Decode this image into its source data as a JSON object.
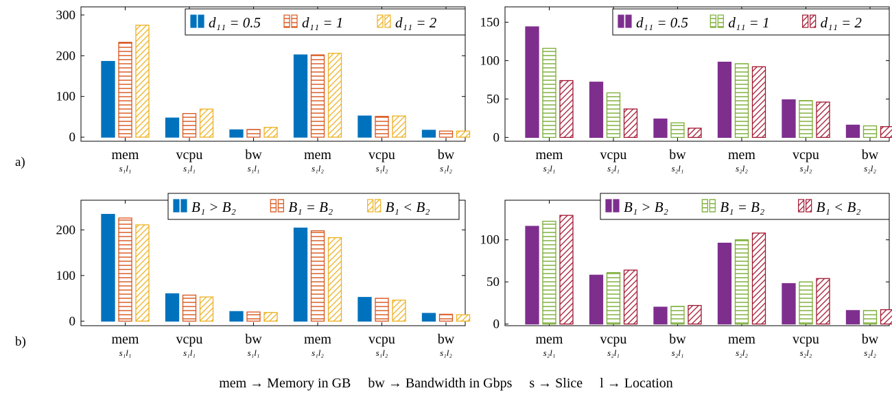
{
  "row_labels": [
    "a)",
    "b)"
  ],
  "caption": "mem → Memory in GB     bw → Bandwidth in Gbps     s → Slice     l → Location",
  "chart_data": [
    {
      "type": "bar",
      "categories": [
        {
          "main": "mem",
          "sub": "s₁l₁"
        },
        {
          "main": "vcpu",
          "sub": "s₁l₁"
        },
        {
          "main": "bw",
          "sub": "s₁l₁"
        },
        {
          "main": "mem",
          "sub": "s₁l₂"
        },
        {
          "main": "vcpu",
          "sub": "s₁l₂"
        },
        {
          "main": "bw",
          "sub": "s₁l₂"
        }
      ],
      "yticks": [
        0,
        100,
        200,
        300
      ],
      "ylim": [
        -10,
        320
      ],
      "legend_position": "top-right",
      "series": [
        {
          "name": "d₁₁ = 0.5",
          "values": [
            186,
            47,
            18,
            202,
            52,
            17
          ],
          "color": "#0072bd",
          "pattern": "solid"
        },
        {
          "name": "d₁₁ = 1",
          "values": [
            233,
            58,
            19,
            202,
            51,
            15
          ],
          "color": "#d95319",
          "pattern": "horizontal"
        },
        {
          "name": "d₁₁ = 2",
          "values": [
            275,
            69,
            24,
            206,
            52,
            15
          ],
          "color": "#edb120",
          "pattern": "diagonal"
        }
      ]
    },
    {
      "type": "bar",
      "categories": [
        {
          "main": "mem",
          "sub": "s₂l₁"
        },
        {
          "main": "vcpu",
          "sub": "s₂l₁"
        },
        {
          "main": "bw",
          "sub": "s₂l₁"
        },
        {
          "main": "mem",
          "sub": "s₂l₂"
        },
        {
          "main": "vcpu",
          "sub": "s₂l₂"
        },
        {
          "main": "bw",
          "sub": "s₂l₂"
        }
      ],
      "yticks": [
        0,
        50,
        100,
        150
      ],
      "ylim": [
        -5,
        170
      ],
      "legend_position": "top-right",
      "series": [
        {
          "name": "d₁₁ = 0.5",
          "values": [
            144,
            72,
            24,
            98,
            49,
            16
          ],
          "color": "#7e2f8e",
          "pattern": "solid"
        },
        {
          "name": "d₁₁ = 1",
          "values": [
            116,
            58,
            19,
            96,
            48,
            15
          ],
          "color": "#77ac30",
          "pattern": "horizontal"
        },
        {
          "name": "d₁₁ = 2",
          "values": [
            74,
            37,
            12,
            92,
            46,
            14
          ],
          "color": "#a2142f",
          "pattern": "diagonal"
        }
      ]
    },
    {
      "type": "bar",
      "categories": [
        {
          "main": "mem",
          "sub": "s₁l₁"
        },
        {
          "main": "vcpu",
          "sub": "s₁l₁"
        },
        {
          "main": "bw",
          "sub": "s₁l₁"
        },
        {
          "main": "mem",
          "sub": "s₁l₂"
        },
        {
          "main": "vcpu",
          "sub": "s₁l₂"
        },
        {
          "main": "bw",
          "sub": "s₁l₂"
        }
      ],
      "yticks": [
        0,
        100,
        200
      ],
      "ylim": [
        -10,
        265
      ],
      "legend_position": "top-right",
      "series": [
        {
          "name": "B₁ > B₂",
          "values": [
            234,
            60,
            21,
            204,
            52,
            17
          ],
          "color": "#0072bd",
          "pattern": "solid"
        },
        {
          "name": "B₁ = B₂",
          "values": [
            226,
            57,
            20,
            198,
            50,
            15
          ],
          "color": "#d95319",
          "pattern": "horizontal"
        },
        {
          "name": "B₁ < B₂",
          "values": [
            211,
            53,
            19,
            183,
            46,
            14
          ],
          "color": "#edb120",
          "pattern": "diagonal"
        }
      ]
    },
    {
      "type": "bar",
      "categories": [
        {
          "main": "mem",
          "sub": "s₂l₁"
        },
        {
          "main": "vcpu",
          "sub": "s₂l₁"
        },
        {
          "main": "bw",
          "sub": "s₂l₁"
        },
        {
          "main": "mem",
          "sub": "s₂l₂"
        },
        {
          "main": "vcpu",
          "sub": "s₂l₂"
        },
        {
          "main": "bw",
          "sub": "s₂l₂"
        }
      ],
      "yticks": [
        0,
        50,
        100
      ],
      "ylim": [
        -2,
        147
      ],
      "legend_position": "top-right",
      "series": [
        {
          "name": "B₁ > B₂",
          "values": [
            116,
            58,
            20,
            96,
            48,
            16
          ],
          "color": "#7e2f8e",
          "pattern": "solid"
        },
        {
          "name": "B₁ = B₂",
          "values": [
            122,
            61,
            21,
            100,
            50,
            16
          ],
          "color": "#77ac30",
          "pattern": "horizontal"
        },
        {
          "name": "B₁ < B₂",
          "values": [
            129,
            64,
            22,
            108,
            54,
            17
          ],
          "color": "#a2142f",
          "pattern": "diagonal"
        }
      ]
    }
  ]
}
